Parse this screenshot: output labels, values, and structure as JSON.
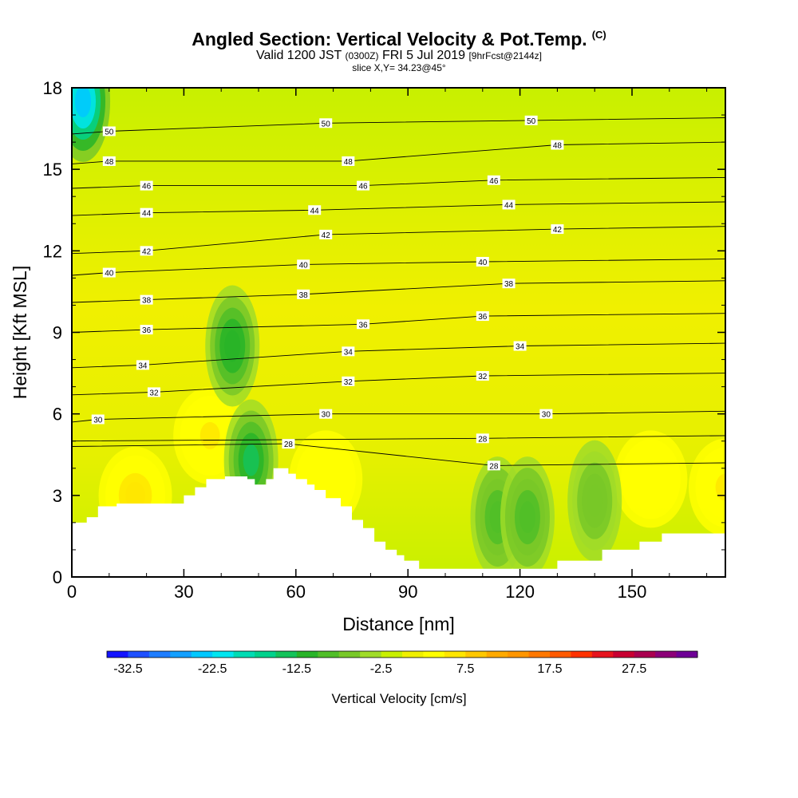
{
  "header": {
    "title": "Angled Section: Vertical Velocity & Pot.Temp.",
    "title_mark": "(C)",
    "subtitle_main": "Valid 1200 JST",
    "subtitle_utc": "(0300Z)",
    "subtitle_date": "FRI 5 Jul 2019",
    "subtitle_fcst": "[9hrFcst@2144z]",
    "slice": "slice X,Y= 34.23@45°"
  },
  "chart_data": {
    "type": "heatmap",
    "title": "Angled Section: Vertical Velocity & Pot.Temp.",
    "xlabel": "Distance [nm]",
    "ylabel": "Height [Kft MSL]",
    "xlim": [
      0,
      175
    ],
    "ylim": [
      0,
      18
    ],
    "xticks": [
      "0",
      "30",
      "60",
      "90",
      "120",
      "150"
    ],
    "yticks": [
      "0",
      "3",
      "6",
      "9",
      "12",
      "15",
      "18"
    ],
    "colorbar": {
      "label": "Vertical Velocity [cm/s]",
      "ticks": [
        "-32.5",
        "-22.5",
        "-12.5",
        "-2.5",
        "7.5",
        "17.5",
        "27.5"
      ],
      "colors": [
        "#1414ff",
        "#1e50ff",
        "#1e7dff",
        "#14a0ff",
        "#00c8ff",
        "#00e6f0",
        "#00dcb4",
        "#00d28c",
        "#14c35a",
        "#28b428",
        "#50be28",
        "#78c828",
        "#a0dc28",
        "#c8f000",
        "#f0f000",
        "#ffff00",
        "#ffe600",
        "#ffc800",
        "#ffaa00",
        "#ff9600",
        "#ff7800",
        "#ff5a00",
        "#ff3200",
        "#e6141e",
        "#c80032",
        "#aa0050",
        "#8c0078",
        "#6e0096"
      ]
    },
    "isentropes": [
      {
        "value": "28",
        "labels": [
          [
            58,
            4.9
          ],
          [
            113,
            4.1
          ]
        ]
      },
      {
        "value": "28",
        "labels": [
          [
            110,
            5.1
          ]
        ]
      },
      {
        "value": "30",
        "labels": [
          [
            7,
            5.8
          ],
          [
            68,
            6.0
          ],
          [
            127,
            6.0
          ]
        ]
      },
      {
        "value": "32",
        "labels": [
          [
            22,
            6.8
          ],
          [
            74,
            7.2
          ],
          [
            110,
            7.4
          ]
        ]
      },
      {
        "value": "34",
        "labels": [
          [
            19,
            7.8
          ],
          [
            74,
            8.3
          ],
          [
            120,
            8.5
          ]
        ]
      },
      {
        "value": "36",
        "labels": [
          [
            20,
            9.1
          ],
          [
            78,
            9.3
          ],
          [
            110,
            9.6
          ]
        ]
      },
      {
        "value": "38",
        "labels": [
          [
            20,
            10.2
          ],
          [
            62,
            10.4
          ],
          [
            117,
            10.8
          ]
        ]
      },
      {
        "value": "40",
        "labels": [
          [
            10,
            11.2
          ],
          [
            62,
            11.5
          ],
          [
            110,
            11.6
          ]
        ]
      },
      {
        "value": "42",
        "labels": [
          [
            20,
            12.0
          ],
          [
            68,
            12.6
          ],
          [
            130,
            12.8
          ]
        ]
      },
      {
        "value": "44",
        "labels": [
          [
            20,
            13.4
          ],
          [
            65,
            13.5
          ],
          [
            117,
            13.7
          ]
        ]
      },
      {
        "value": "46",
        "labels": [
          [
            20,
            14.4
          ],
          [
            78,
            14.4
          ],
          [
            113,
            14.6
          ]
        ]
      },
      {
        "value": "48",
        "labels": [
          [
            10,
            15.3
          ],
          [
            74,
            15.3
          ],
          [
            130,
            15.9
          ]
        ]
      },
      {
        "value": "50",
        "labels": [
          [
            10,
            16.4
          ],
          [
            68,
            16.7
          ],
          [
            123,
            16.8
          ]
        ]
      }
    ],
    "terrain": [
      [
        0,
        2.0
      ],
      [
        4,
        2.2
      ],
      [
        7,
        2.6
      ],
      [
        12,
        2.7
      ],
      [
        18,
        2.7
      ],
      [
        24,
        2.7
      ],
      [
        29,
        2.7
      ],
      [
        30,
        3.0
      ],
      [
        33,
        3.3
      ],
      [
        36,
        3.6
      ],
      [
        41,
        3.7
      ],
      [
        47,
        3.6
      ],
      [
        49,
        3.4
      ],
      [
        52,
        3.6
      ],
      [
        54,
        4.0
      ],
      [
        58,
        3.8
      ],
      [
        60,
        3.6
      ],
      [
        63,
        3.4
      ],
      [
        65,
        3.2
      ],
      [
        68,
        2.9
      ],
      [
        72,
        2.6
      ],
      [
        75,
        2.1
      ],
      [
        78,
        1.8
      ],
      [
        81,
        1.3
      ],
      [
        84,
        1.0
      ],
      [
        87,
        0.8
      ],
      [
        89,
        0.6
      ],
      [
        93,
        0.3
      ],
      [
        100,
        0.3
      ],
      [
        110,
        0.3
      ],
      [
        120,
        0.3
      ],
      [
        129,
        0.3
      ],
      [
        130,
        0.6
      ],
      [
        135,
        0.6
      ],
      [
        142,
        1.0
      ],
      [
        148,
        1.0
      ],
      [
        152,
        1.3
      ],
      [
        158,
        1.6
      ],
      [
        162,
        1.6
      ],
      [
        175,
        1.6
      ]
    ],
    "updraft_cores": [
      {
        "x": 17,
        "y": 3.0,
        "w": 6.0
      },
      {
        "x": 37,
        "y": 5.2,
        "w": 5.0
      },
      {
        "x": 68,
        "y": 3.6,
        "w": 4.5
      },
      {
        "x": 155,
        "y": 3.6,
        "w": 4.5
      },
      {
        "x": 175,
        "y": 3.3,
        "w": 5.0
      }
    ],
    "downdraft_cores": [
      {
        "x": 3,
        "y": 17.5,
        "w": -25.0
      },
      {
        "x": 43,
        "y": 8.5,
        "w": -12.5
      },
      {
        "x": 48,
        "y": 4.3,
        "w": -15.0
      },
      {
        "x": 114,
        "y": 2.2,
        "w": -10.0
      },
      {
        "x": 122,
        "y": 2.2,
        "w": -10.0
      },
      {
        "x": 140,
        "y": 2.8,
        "w": -7.5
      }
    ]
  }
}
